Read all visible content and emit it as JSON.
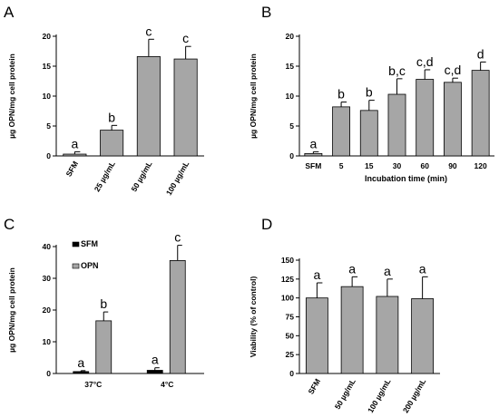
{
  "chart_data": [
    {
      "type": "bar",
      "panel_label": "A",
      "ylabel": "µg OPN/mg cell protein",
      "xlabel": "",
      "ylim": [
        0,
        20
      ],
      "yticks": [
        "0",
        "5",
        "10",
        "15",
        "20"
      ],
      "categories": [
        "SFM",
        "25 µg/mL",
        "50 µg/mL",
        "100 µg/mL"
      ],
      "values": [
        0.3,
        4.3,
        16.6,
        16.2
      ],
      "errors": [
        0.4,
        0.8,
        2.9,
        2.1
      ],
      "labels": [
        "a",
        "b",
        "c",
        "c"
      ],
      "bar_color": "#a6a6a6",
      "rotate_categories": true
    },
    {
      "type": "bar",
      "panel_label": "B",
      "ylabel": "µg OPN/mg cell protein",
      "xlabel": "Incubation time (min)",
      "ylim": [
        0,
        20
      ],
      "yticks": [
        "0",
        "5",
        "10",
        "15",
        "20"
      ],
      "categories": [
        "SFM",
        "5",
        "15",
        "30",
        "60",
        "90",
        "120"
      ],
      "values": [
        0.4,
        8.2,
        7.6,
        10.3,
        12.8,
        12.3,
        14.3
      ],
      "errors": [
        0.3,
        0.8,
        1.7,
        2.6,
        1.6,
        0.7,
        1.4
      ],
      "labels": [
        "a",
        "b",
        "b",
        "b,c",
        "c,d",
        "c,d",
        "d"
      ],
      "bar_color": "#a6a6a6",
      "rotate_categories": false
    },
    {
      "type": "bar",
      "panel_label": "C",
      "ylabel": "µg OPN/mg cell protein",
      "xlabel": "",
      "ylim": [
        0,
        40
      ],
      "yticks": [
        "0",
        "10",
        "20",
        "30",
        "40"
      ],
      "categories": [
        "37°C",
        "4°C"
      ],
      "series": [
        {
          "name": "SFM",
          "values": [
            0.6,
            1.0
          ],
          "errors": [
            0.3,
            0.8
          ],
          "labels": [
            "a",
            "a"
          ],
          "color": "#000000"
        },
        {
          "name": "OPN",
          "values": [
            16.6,
            35.6
          ],
          "errors": [
            2.8,
            4.8
          ],
          "labels": [
            "b",
            "c"
          ],
          "color": "#a6a6a6"
        }
      ],
      "legend_position": "top-left"
    },
    {
      "type": "bar",
      "panel_label": "D",
      "ylabel": "Viability (% of control)",
      "xlabel": "",
      "ylim": [
        0,
        150
      ],
      "yticks": [
        "0",
        "25",
        "50",
        "75",
        "100",
        "125",
        "150"
      ],
      "categories": [
        "SFM",
        "50 µg/mL",
        "100 µg/mL",
        "200 µg/mL"
      ],
      "values": [
        100,
        115,
        102,
        99
      ],
      "errors": [
        20,
        13,
        23,
        29
      ],
      "labels": [
        "a",
        "a",
        "a",
        "a"
      ],
      "bar_color": "#a6a6a6",
      "rotate_categories": true
    }
  ]
}
